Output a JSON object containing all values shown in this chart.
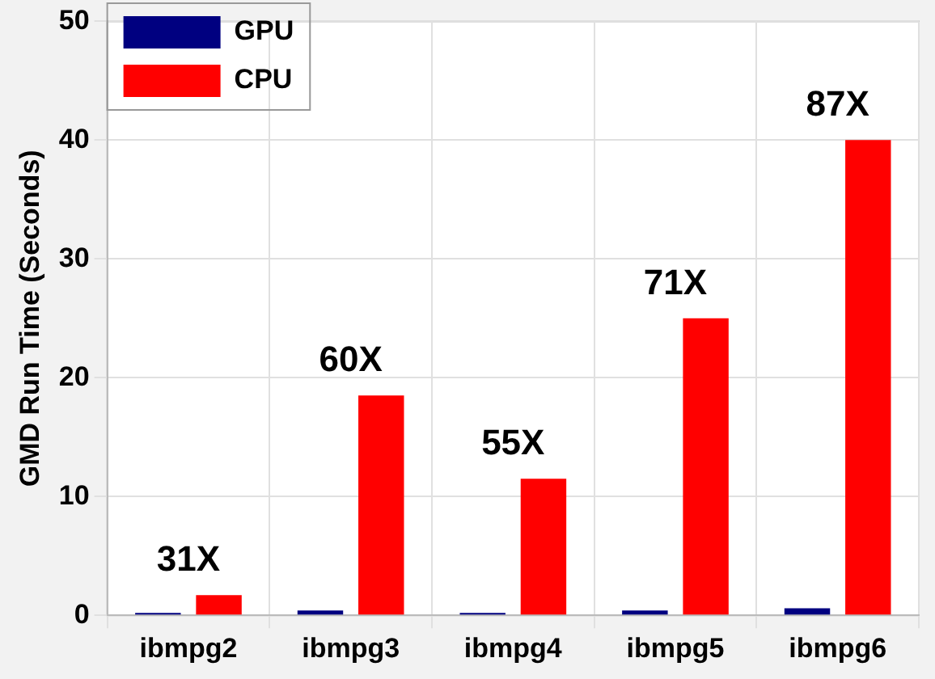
{
  "chart_data": {
    "type": "bar",
    "ylabel": "GMD Run Time (Seconds)",
    "categories": [
      "ibmpg2",
      "ibmpg3",
      "ibmpg4",
      "ibmpg5",
      "ibmpg6"
    ],
    "series": [
      {
        "name": "GPU",
        "color": "#000080",
        "values": [
          0.2,
          0.4,
          0.2,
          0.4,
          0.6
        ]
      },
      {
        "name": "CPU",
        "color": "#ff0000",
        "values": [
          1.7,
          18.5,
          11.5,
          25,
          40
        ]
      }
    ],
    "ylim": [
      0,
      50
    ],
    "yticks": [
      0,
      10,
      20,
      30,
      40,
      50
    ],
    "grid": true,
    "legend": "top left",
    "annotations": [
      {
        "text": "31X",
        "x": "ibmpg2",
        "y": 1.7
      },
      {
        "text": "60X",
        "x": "ibmpg3",
        "y": 18.5
      },
      {
        "text": "55X",
        "x": "ibmpg4",
        "y": 11.5
      },
      {
        "text": "71X",
        "x": "ibmpg5",
        "y": 25
      },
      {
        "text": "87X",
        "x": "ibmpg6",
        "y": 40
      }
    ]
  }
}
